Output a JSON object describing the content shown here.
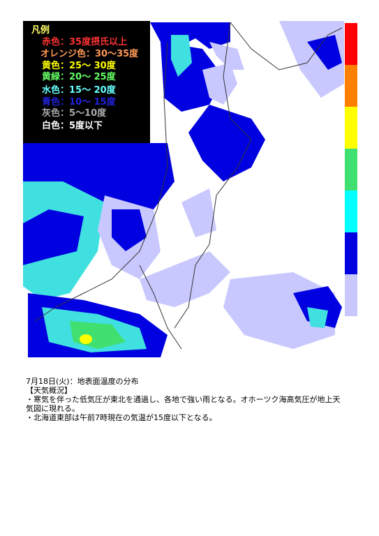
{
  "legend": {
    "title": "凡例",
    "items": [
      {
        "label": "赤色：35度摂氏以上",
        "color": "#ff3333"
      },
      {
        "label": "オレンジ色：30～35度",
        "color": "#ff9955"
      },
      {
        "label": "黄色：25～ 30度",
        "color": "#ffff00"
      },
      {
        "label": "黄緑：20～ 25度",
        "color": "#66ff66"
      },
      {
        "label": "水色：15～ 20度",
        "color": "#66ffff"
      },
      {
        "label": "青色：10～ 15度",
        "color": "#2222dd"
      },
      {
        "label": "灰色：5～10度",
        "color": "#aaaaaa"
      },
      {
        "label": "白色：5度以下",
        "color": "#ffffff"
      }
    ]
  },
  "color_bar": [
    "#ff0000",
    "#ff8000",
    "#ffff00",
    "#40e070",
    "#00ffff",
    "#0000e0",
    "#c8c8ff"
  ],
  "caption": {
    "date": "7月18日(火)：地表面温度の分布",
    "heading": "【天気概況】",
    "lines": [
      "・寒気を伴った低気圧が東北を通過し、各地で強い雨となる。オホーツク海高気圧が地上天気図に現れる。",
      "・北海道東部は午前7時現在の気温が15度以下となる。"
    ]
  }
}
